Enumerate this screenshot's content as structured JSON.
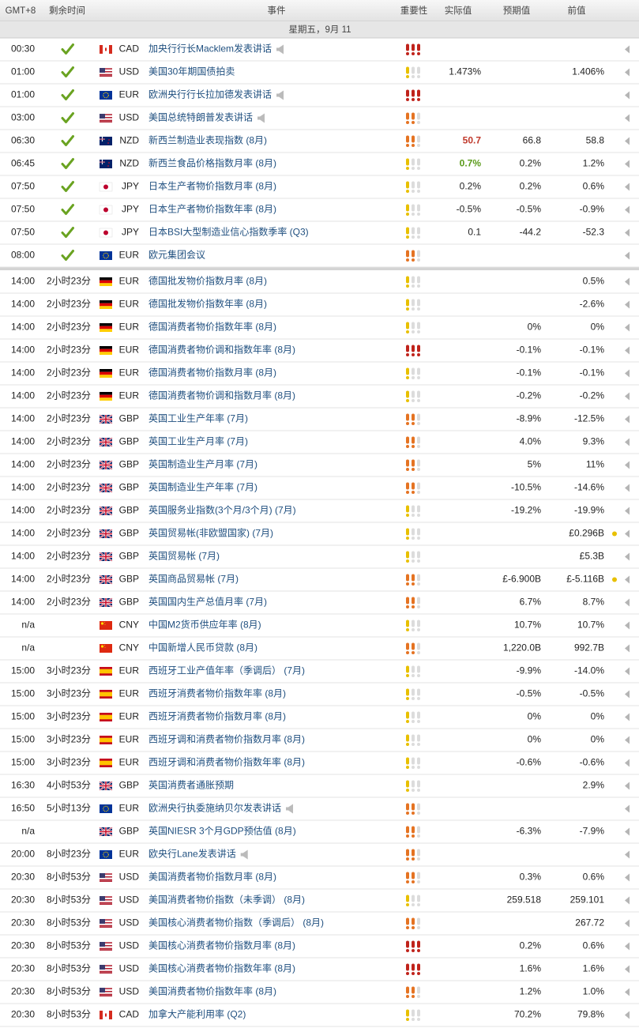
{
  "header": {
    "columns": [
      "GMT+8",
      "剩余时间",
      "事件",
      "重要性",
      "实际值",
      "预期值",
      "前值"
    ],
    "date": "星期五，9月 11"
  },
  "sections": [
    {
      "rows": [
        {
          "time": "00:30",
          "currency": "CAD",
          "event": "加央行行长Macklem发表讲话",
          "importance": 3
        },
        {
          "time": "01:00",
          "currency": "USD",
          "event": "美国30年期国债拍卖",
          "importance": 1,
          "actual": "1.473%",
          "previous": "1.406%"
        },
        {
          "time": "01:00",
          "currency": "EUR",
          "event": "欧洲央行行长拉加德发表讲话",
          "importance": 3
        },
        {
          "time": "03:00",
          "currency": "USD",
          "event": "美国总统特朗普发表讲话",
          "importance": 2
        },
        {
          "time": "06:30",
          "currency": "NZD",
          "event": "新西兰制造业表现指数 (8月)",
          "importance": 2,
          "actual": "50.7",
          "actual_color": "#c0392b",
          "forecast": "66.8",
          "previous": "58.8"
        },
        {
          "time": "06:45",
          "currency": "NZD",
          "event": "新西兰食品价格指数月率 (8月)",
          "importance": 1,
          "actual": "0.7%",
          "actual_color": "#5a9a1a",
          "forecast": "0.2%",
          "previous": "1.2%"
        },
        {
          "time": "07:50",
          "currency": "JPY",
          "event": "日本生产者物价指数月率 (8月)",
          "importance": 1,
          "actual": "0.2%",
          "forecast": "0.2%",
          "previous": "0.6%"
        },
        {
          "time": "07:50",
          "currency": "JPY",
          "event": "日本生产者物价指数年率 (8月)",
          "importance": 1,
          "actual": "-0.5%",
          "forecast": "-0.5%",
          "previous": "-0.9%"
        },
        {
          "time": "07:50",
          "currency": "JPY",
          "event": "日本BSI大型制造业信心指数季率 (Q3)",
          "importance": 1,
          "actual": "0.1",
          "forecast": "-44.2",
          "previous": "-52.3"
        },
        {
          "time": "08:00",
          "currency": "EUR",
          "event": "欧元集团会议",
          "importance": 2
        }
      ]
    },
    {
      "rows": [
        {
          "time": "14:00",
          "remaining": "2小时23分",
          "currency": "EUR",
          "event": "德国批发物价指数月率 (8月)",
          "importance": 1,
          "previous": "0.5%"
        },
        {
          "time": "14:00",
          "remaining": "2小时23分",
          "currency": "EUR",
          "event": "德国批发物价指数年率 (8月)",
          "importance": 1,
          "previous": "-2.6%"
        },
        {
          "time": "14:00",
          "remaining": "2小时23分",
          "currency": "EUR",
          "event": "德国消费者物价指数年率 (8月)",
          "importance": 1,
          "forecast": "0%",
          "previous": "0%"
        },
        {
          "time": "14:00",
          "remaining": "2小时23分",
          "currency": "EUR",
          "event": "德国消费者物价调和指数年率 (8月)",
          "importance": 3,
          "forecast": "-0.1%",
          "previous": "-0.1%"
        },
        {
          "time": "14:00",
          "remaining": "2小时23分",
          "currency": "EUR",
          "event": "德国消费者物价指数月率 (8月)",
          "importance": 1,
          "forecast": "-0.1%",
          "previous": "-0.1%"
        },
        {
          "time": "14:00",
          "remaining": "2小时23分",
          "currency": "EUR",
          "event": "德国消费者物价调和指数月率 (8月)",
          "importance": 1,
          "forecast": "-0.2%",
          "previous": "-0.2%"
        },
        {
          "time": "14:00",
          "remaining": "2小时23分",
          "currency": "GBP",
          "event": "英国工业生产年率 (7月)",
          "importance": 2,
          "forecast": "-8.9%",
          "previous": "-12.5%"
        },
        {
          "time": "14:00",
          "remaining": "2小时23分",
          "currency": "GBP",
          "event": "英国工业生产月率 (7月)",
          "importance": 2,
          "forecast": "4.0%",
          "previous": "9.3%"
        },
        {
          "time": "14:00",
          "remaining": "2小时23分",
          "currency": "GBP",
          "event": "英国制造业生产月率 (7月)",
          "importance": 2,
          "forecast": "5%",
          "previous": "11%"
        },
        {
          "time": "14:00",
          "remaining": "2小时23分",
          "currency": "GBP",
          "event": "英国制造业生产年率 (7月)",
          "importance": 2,
          "forecast": "-10.5%",
          "previous": "-14.6%"
        },
        {
          "time": "14:00",
          "remaining": "2小时23分",
          "currency": "GBP",
          "event": "英国服务业指数(3个月/3个月) (7月)",
          "importance": 1,
          "forecast": "-19.2%",
          "previous": "-19.9%"
        },
        {
          "time": "14:00",
          "remaining": "2小时23分",
          "currency": "GBP",
          "event": "英国贸易帐(非欧盟国家) (7月)",
          "importance": 1,
          "previous": "£0.296B",
          "revised": true
        },
        {
          "time": "14:00",
          "remaining": "2小时23分",
          "currency": "GBP",
          "event": "英国贸易帐 (7月)",
          "importance": 1,
          "previous": "£5.3B"
        },
        {
          "time": "14:00",
          "remaining": "2小时23分",
          "currency": "GBP",
          "event": "英国商品贸易帐 (7月)",
          "importance": 2,
          "forecast": "£-6.900B",
          "previous": "£-5.116B",
          "revised": true
        },
        {
          "time": "14:00",
          "remaining": "2小时23分",
          "currency": "GBP",
          "event": "英国国内生产总值月率 (7月)",
          "importance": 2,
          "forecast": "6.7%",
          "previous": "8.7%"
        },
        {
          "time": "n/a",
          "currency": "CNY",
          "event": "中国M2货币供应年率 (8月)",
          "importance": 1,
          "forecast": "10.7%",
          "previous": "10.7%"
        },
        {
          "time": "n/a",
          "currency": "CNY",
          "event": "中国新增人民币贷款 (8月)",
          "importance": 2,
          "forecast": "1,220.0B",
          "previous": "992.7B"
        },
        {
          "time": "15:00",
          "remaining": "3小时23分",
          "currency": "EUR",
          "event": "西班牙工业产值年率（季调后） (7月)",
          "importance": 1,
          "forecast": "-9.9%",
          "previous": "-14.0%"
        },
        {
          "time": "15:00",
          "remaining": "3小时23分",
          "currency": "EUR",
          "event": "西班牙消费者物价指数年率 (8月)",
          "importance": 1,
          "forecast": "-0.5%",
          "previous": "-0.5%"
        },
        {
          "time": "15:00",
          "remaining": "3小时23分",
          "currency": "EUR",
          "event": "西班牙消费者物价指数月率 (8月)",
          "importance": 1,
          "forecast": "0%",
          "previous": "0%"
        },
        {
          "time": "15:00",
          "remaining": "3小时23分",
          "currency": "EUR",
          "event": "西班牙调和消费者物价指数月率 (8月)",
          "importance": 1,
          "forecast": "0%",
          "previous": "0%"
        },
        {
          "time": "15:00",
          "remaining": "3小时23分",
          "currency": "EUR",
          "event": "西班牙调和消费者物价指数年率 (8月)",
          "importance": 1,
          "forecast": "-0.6%",
          "previous": "-0.6%"
        },
        {
          "time": "16:30",
          "remaining": "4小时53分",
          "currency": "GBP",
          "event": "英国消费者通胀预期",
          "importance": 1,
          "previous": "2.9%"
        },
        {
          "time": "16:50",
          "remaining": "5小时13分",
          "currency": "EUR",
          "event": "欧洲央行执委施纳贝尔发表讲话",
          "importance": 2
        },
        {
          "time": "n/a",
          "currency": "GBP",
          "event": "英国NIESR 3个月GDP预估值 (8月)",
          "importance": 2,
          "forecast": "-6.3%",
          "previous": "-7.9%"
        },
        {
          "time": "20:00",
          "remaining": "8小时23分",
          "currency": "EUR",
          "event": "欧央行Lane发表讲话",
          "importance": 2
        },
        {
          "time": "20:30",
          "remaining": "8小时53分",
          "currency": "USD",
          "event": "美国消费者物价指数月率 (8月)",
          "importance": 2,
          "forecast": "0.3%",
          "previous": "0.6%"
        },
        {
          "time": "20:30",
          "remaining": "8小时53分",
          "currency": "USD",
          "event": "美国消费者物价指数（未季调） (8月)",
          "importance": 1,
          "forecast": "259.518",
          "previous": "259.101"
        },
        {
          "time": "20:30",
          "remaining": "8小时53分",
          "currency": "USD",
          "event": "美国核心消费者物价指数（季调后） (8月)",
          "importance": 2,
          "previous": "267.72"
        },
        {
          "time": "20:30",
          "remaining": "8小时53分",
          "currency": "USD",
          "event": "美国核心消费者物价指数月率 (8月)",
          "importance": 3,
          "forecast": "0.2%",
          "previous": "0.6%"
        },
        {
          "time": "20:30",
          "remaining": "8小时53分",
          "currency": "USD",
          "event": "美国核心消费者物价指数年率 (8月)",
          "importance": 3,
          "forecast": "1.6%",
          "previous": "1.6%"
        },
        {
          "time": "20:30",
          "remaining": "8小时53分",
          "currency": "USD",
          "event": "美国消费者物价指数年率 (8月)",
          "importance": 2,
          "forecast": "1.2%",
          "previous": "1.0%"
        },
        {
          "time": "20:30",
          "remaining": "8小时53分",
          "currency": "CAD",
          "event": "加拿大产能利用率 (Q2)",
          "importance": 1,
          "forecast": "70.2%",
          "previous": "79.8%"
        }
      ]
    }
  ]
}
